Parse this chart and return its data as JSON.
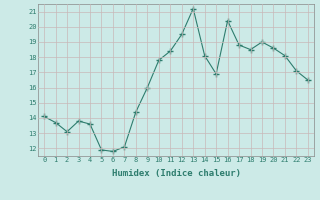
{
  "x": [
    0,
    1,
    2,
    3,
    4,
    5,
    6,
    7,
    8,
    9,
    10,
    11,
    12,
    13,
    14,
    15,
    16,
    17,
    18,
    19,
    20,
    21,
    22,
    23
  ],
  "y": [
    14.1,
    13.7,
    13.1,
    13.8,
    13.6,
    11.9,
    11.8,
    12.1,
    14.4,
    16.0,
    17.8,
    18.4,
    19.5,
    21.2,
    18.1,
    16.9,
    20.4,
    18.8,
    18.5,
    19.0,
    18.6,
    18.1,
    17.1,
    16.5
  ],
  "line_color": "#2e7d6e",
  "marker": "+",
  "marker_size": 4,
  "bg_color": "#cceae7",
  "grid_color": "#b8d8d5",
  "xlabel": "Humidex (Indice chaleur)",
  "ylim": [
    11.5,
    21.5
  ],
  "yticks": [
    12,
    13,
    14,
    15,
    16,
    17,
    18,
    19,
    20,
    21
  ],
  "xticks": [
    0,
    1,
    2,
    3,
    4,
    5,
    6,
    7,
    8,
    9,
    10,
    11,
    12,
    13,
    14,
    15,
    16,
    17,
    18,
    19,
    20,
    21,
    22,
    23
  ],
  "xtick_labels": [
    "0",
    "1",
    "2",
    "3",
    "4",
    "5",
    "6",
    "7",
    "8",
    "9",
    "10",
    "11",
    "12",
    "13",
    "14",
    "15",
    "16",
    "17",
    "18",
    "19",
    "20",
    "21",
    "22",
    "23"
  ],
  "spine_color": "#888888",
  "tick_color": "#2e7d6e",
  "label_color": "#2e7d6e"
}
